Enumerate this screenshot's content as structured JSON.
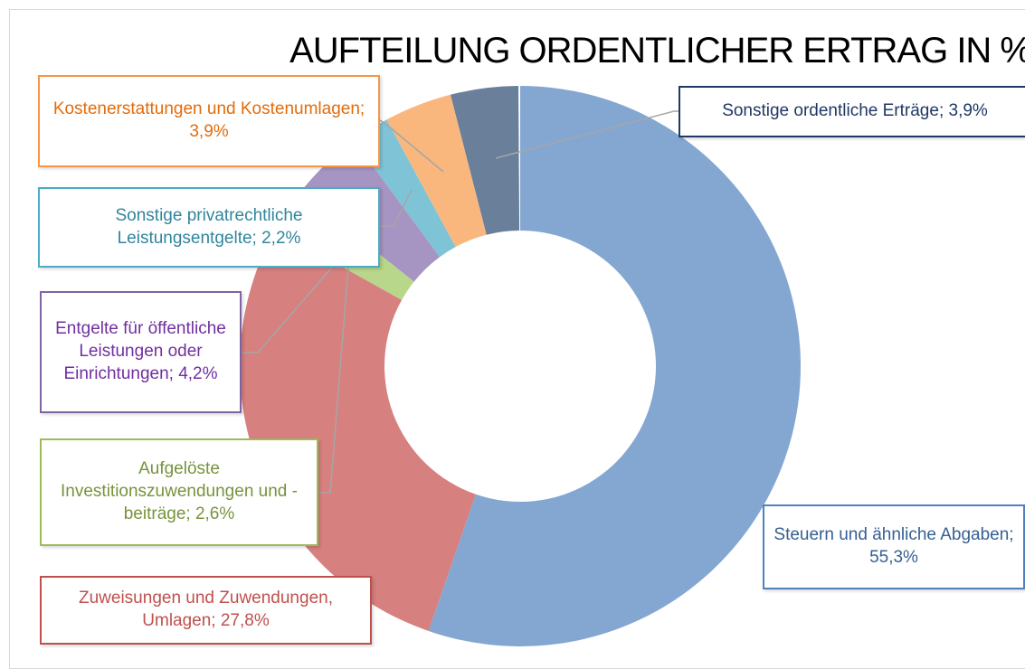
{
  "chart_data": {
    "type": "donut",
    "title": "AUFTEILUNG ORDENTLICHER ERTRAG IN %",
    "values": [
      55.3,
      27.8,
      2.6,
      4.2,
      2.2,
      3.9,
      3.9
    ],
    "value_labels": [
      "Steuern und ähnliche Abgaben; 55,3%",
      "Zuweisungen und Zuwendungen, Umlagen; 27,8%",
      "Aufgelöste Investitionszuwendungen und -beiträge; 2,6%",
      "Entgelte für öffentliche Leistungen oder Einrichtungen; 4,2%",
      "Sonstige privatrechtliche Leistungsentgelte; 2,2%",
      "Kostenerstattungen und Kostenumlagen; 3,9%",
      "Sonstige ordentliche Erträge; 3,9%"
    ],
    "colors": [
      "#84a7d2",
      "#d6807f",
      "#b8d78a",
      "#a694c2",
      "#7fc4d6",
      "#f9b77e",
      "#6a7f9a"
    ]
  }
}
